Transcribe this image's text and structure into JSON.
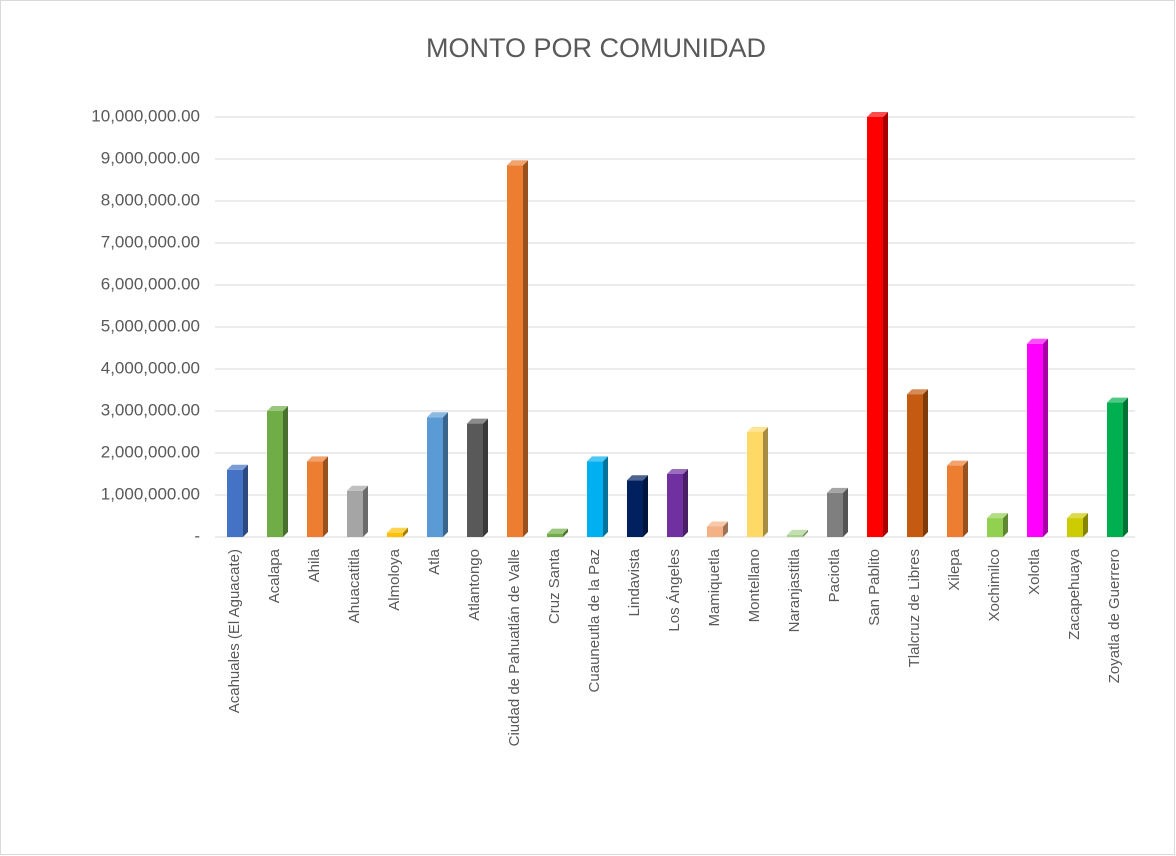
{
  "chart_data": {
    "type": "bar3d",
    "title": "MONTO POR COMUNIDAD",
    "categories": [
      "Acahuales (El Aguacate)",
      "Acalapa",
      "Ahila",
      "Ahuacatitla",
      "Almoloya",
      "Atla",
      "Atlantongo",
      "Ciudad de Pahuatlán de Valle",
      "Cruz Santa",
      "Cuauneutla de la Paz",
      "Lindavista",
      "Los Ángeles",
      "Mamiquetla",
      "Montellano",
      "Naranjastitla",
      "Paciotla",
      "San Pablito",
      "Tlalcruz de Libres",
      "Xilepa",
      "Xochimilco",
      "Xolotla",
      "Zacapehuaya",
      "Zoyatla de Guerrero"
    ],
    "values": [
      1600000,
      3000000,
      1800000,
      1100000,
      100000,
      2850000,
      2700000,
      8850000,
      80000,
      1800000,
      1350000,
      1500000,
      250000,
      2500000,
      50000,
      1050000,
      10000000,
      3400000,
      1700000,
      450000,
      4600000,
      450000,
      3200000
    ],
    "colors": [
      "#4472c4",
      "#70ad47",
      "#ed7d31",
      "#a5a5a5",
      "#ffc000",
      "#5b9bd5",
      "#595959",
      "#ed7d31",
      "#70ad47",
      "#00b0f0",
      "#002060",
      "#7030a0",
      "#f4b183",
      "#ffd966",
      "#a9d18e",
      "#7f7f7f",
      "#ff0000",
      "#c55a11",
      "#ed7d31",
      "#92d050",
      "#ff00ff",
      "#cccc00",
      "#00b050"
    ],
    "ylim": [
      0,
      10000000
    ],
    "yticks": [
      {
        "value": 0,
        "label": "-"
      },
      {
        "value": 1000000,
        "label": "1,000,000.00"
      },
      {
        "value": 2000000,
        "label": "2,000,000.00"
      },
      {
        "value": 3000000,
        "label": "3,000,000.00"
      },
      {
        "value": 4000000,
        "label": "4,000,000.00"
      },
      {
        "value": 5000000,
        "label": "5,000,000.00"
      },
      {
        "value": 6000000,
        "label": "6,000,000.00"
      },
      {
        "value": 7000000,
        "label": "7,000,000.00"
      },
      {
        "value": 8000000,
        "label": "8,000,000.00"
      },
      {
        "value": 9000000,
        "label": "9,000,000.00"
      },
      {
        "value": 10000000,
        "label": "10,000,000.00"
      }
    ],
    "grid": true
  }
}
